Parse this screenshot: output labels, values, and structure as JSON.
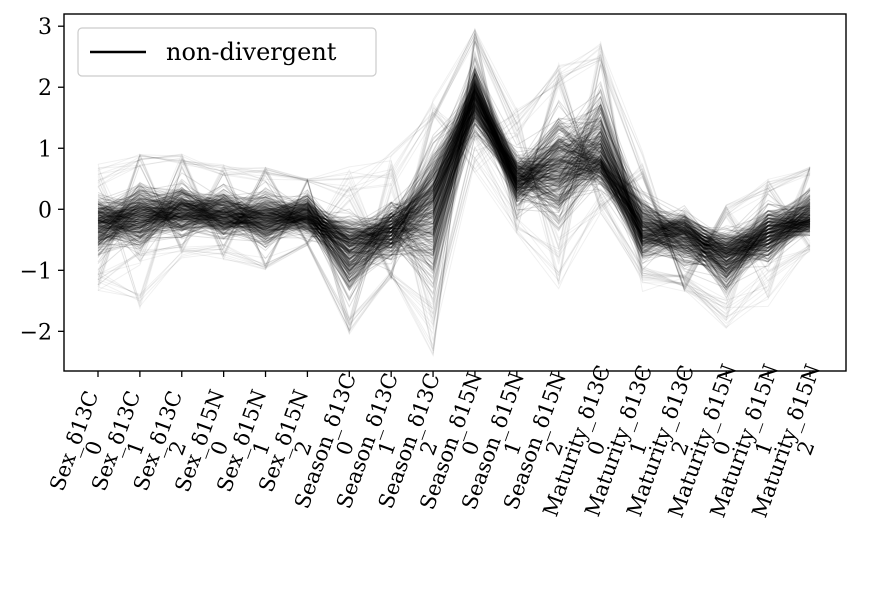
{
  "chart_data": {
    "type": "line",
    "title": "",
    "xlabel": "",
    "ylabel": "",
    "categories": [
      "Sex_δ13C\n0",
      "Sex_δ13C\n1",
      "Sex_δ13C\n2",
      "Sex_δ15N\n0",
      "Sex_δ15N\n1",
      "Sex_δ15N\n2",
      "Season_δ13C\n0",
      "Season_δ13C\n1",
      "Season_δ13C\n2",
      "Season_δ15N\n0",
      "Season_δ15N\n1",
      "Season_δ15N\n2",
      "Maturity_δ13C\n0",
      "Maturity_δ13C\n1",
      "Maturity_δ13C\n2",
      "Maturity_δ15N\n0",
      "Maturity_δ15N\n1",
      "Maturity_δ15N\n2"
    ],
    "ylim": [
      -2.65,
      3.2
    ],
    "yticks": [
      -2,
      -1,
      0,
      1,
      2,
      3
    ],
    "grid": false,
    "legend": {
      "position": "top-left",
      "entries": [
        "non-divergent"
      ]
    },
    "line_color": "#000000",
    "series": [
      {
        "name": "non-divergent",
        "values_mean": [
          -0.25,
          -0.1,
          -0.05,
          -0.1,
          -0.15,
          -0.1,
          -0.6,
          -0.35,
          0.1,
          1.9,
          0.5,
          0.7,
          0.85,
          -0.35,
          -0.4,
          -0.75,
          -0.4,
          -0.15
        ]
      },
      {
        "name": "non-divergent",
        "values_upper": [
          0.35,
          0.7,
          0.6,
          0.55,
          0.45,
          0.45,
          0.1,
          0.3,
          1.4,
          2.7,
          1.1,
          2.0,
          2.35,
          0.5,
          0.15,
          -0.15,
          0.25,
          0.55
        ]
      },
      {
        "name": "non-divergent",
        "values_lower": [
          -1.1,
          -0.9,
          -0.65,
          -0.65,
          -0.85,
          -0.55,
          -1.85,
          -1.05,
          -1.75,
          1.0,
          -0.15,
          -0.7,
          0.15,
          -1.05,
          -1.15,
          -1.6,
          -1.05,
          -0.55
        ]
      },
      {
        "name": "non-divergent",
        "values_outer_max": [
          0.75,
          0.9,
          0.95,
          0.75,
          0.7,
          0.5,
          0.7,
          0.95,
          1.8,
          2.95,
          1.7,
          2.4,
          2.75,
          0.95,
          0.4,
          0.1,
          0.5,
          0.7
        ]
      },
      {
        "name": "non-divergent",
        "values_outer_min": [
          -1.35,
          -1.65,
          -0.85,
          -0.85,
          -1.0,
          -0.6,
          -2.05,
          -1.15,
          -2.4,
          0.5,
          -0.4,
          -1.3,
          -0.1,
          -1.35,
          -1.35,
          -1.95,
          -1.6,
          -0.7
        ]
      }
    ],
    "line_count": 400
  }
}
